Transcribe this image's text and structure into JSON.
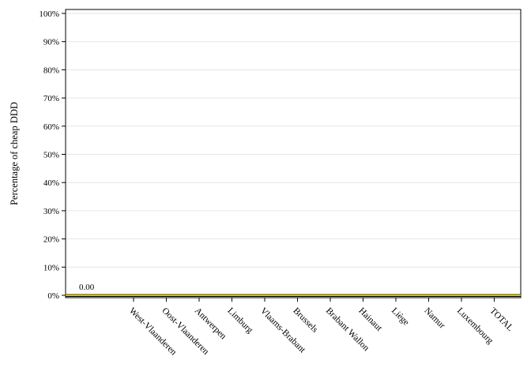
{
  "chart_data": {
    "type": "line",
    "title": "",
    "xlabel": "",
    "ylabel": "Percentage of cheap DDD",
    "categories": [
      "West-Vlaanderen",
      "Oost-Vlaanderen",
      "Antwerpen",
      "Limburg",
      "Vlaams-Brabant",
      "Brussels",
      "Brabant Wallon",
      "Hainaut",
      "Liège",
      "Namur",
      "Luxembourg",
      "TOTAL"
    ],
    "y_ticks": [
      "0%",
      "10%",
      "20%",
      "30%",
      "40%",
      "50%",
      "60%",
      "70%",
      "80%",
      "90%",
      "100%"
    ],
    "ylim": [
      0,
      100
    ],
    "grid": true,
    "series": [
      {
        "values": [
          0,
          0,
          0,
          0,
          0,
          0,
          0,
          0,
          0,
          0,
          0,
          0
        ],
        "color": "#d4b800"
      }
    ],
    "data_labels": [
      {
        "text": "0.00",
        "value": 0
      }
    ]
  }
}
